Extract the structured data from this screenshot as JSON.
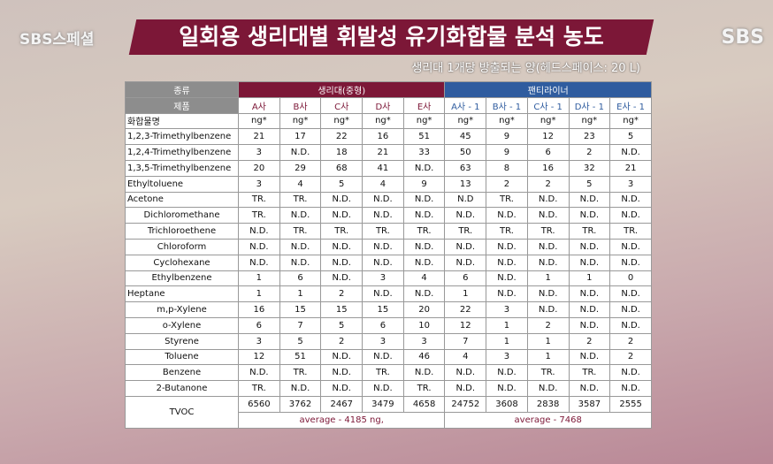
{
  "logo_left": "SBS스페셜",
  "logo_right": "SBS",
  "title": "일회용 생리대별 휘발성 유기화합물 분석 농도",
  "subtitle": "생리대 1개당 방출되는 양(헤드스페이스: 20 L)",
  "table": {
    "kind_label": "종류",
    "groups": [
      "생리대(중형)",
      "팬티라이너"
    ],
    "product_label": "제품",
    "products": [
      "A사",
      "B사",
      "C사",
      "D사",
      "E사",
      "A사 - 1",
      "B사 - 1",
      "C사 - 1",
      "D사 - 1",
      "E사 - 1"
    ],
    "compound_label": "화합물명",
    "units": [
      "ng*",
      "ng*",
      "ng*",
      "ng*",
      "ng*",
      "ng*",
      "ng*",
      "ng*",
      "ng*",
      "ng*"
    ],
    "rows": [
      {
        "name": "1,2,3-Trimethylbenzene",
        "cells": [
          "21",
          "17",
          "22",
          "16",
          "51",
          "45",
          "9",
          "12",
          "23",
          "5"
        ]
      },
      {
        "name": "1,2,4-Trimethylbenzene",
        "cells": [
          "3",
          "N.D.",
          "18",
          "21",
          "33",
          "50",
          "9",
          "6",
          "2",
          "N.D."
        ]
      },
      {
        "name": "1,3,5-Trimethylbenzene",
        "cells": [
          "20",
          "29",
          "68",
          "41",
          "N.D.",
          "63",
          "8",
          "16",
          "32",
          "21"
        ]
      },
      {
        "name": "Ethyltoluene",
        "cells": [
          "3",
          "4",
          "5",
          "4",
          "9",
          "13",
          "2",
          "2",
          "5",
          "3"
        ]
      },
      {
        "name": "Acetone",
        "cells": [
          "TR.",
          "TR.",
          "N.D.",
          "N.D.",
          "N.D.",
          "N.D",
          "TR.",
          "N.D.",
          "N.D.",
          "N.D."
        ]
      },
      {
        "name": "Dichloromethane",
        "cells": [
          "TR.",
          "N.D.",
          "N.D.",
          "N.D.",
          "N.D.",
          "N.D.",
          "N.D.",
          "N.D.",
          "N.D.",
          "N.D."
        ]
      },
      {
        "name": "Trichloroethene",
        "cells": [
          "N.D.",
          "TR.",
          "TR.",
          "TR.",
          "TR.",
          "TR.",
          "TR.",
          "TR.",
          "TR.",
          "TR."
        ]
      },
      {
        "name": "Chloroform",
        "cells": [
          "N.D.",
          "N.D.",
          "N.D.",
          "N.D.",
          "N.D.",
          "N.D.",
          "N.D.",
          "N.D.",
          "N.D.",
          "N.D."
        ]
      },
      {
        "name": "Cyclohexane",
        "cells": [
          "N.D.",
          "N.D.",
          "N.D.",
          "N.D.",
          "N.D.",
          "N.D.",
          "N.D.",
          "N.D.",
          "N.D.",
          "N.D."
        ]
      },
      {
        "name": "Ethylbenzene",
        "cells": [
          "1",
          "6",
          "N.D.",
          "3",
          "4",
          "6",
          "N.D.",
          "1",
          "1",
          "0"
        ]
      },
      {
        "name": "Heptane",
        "cells": [
          "1",
          "1",
          "2",
          "N.D.",
          "N.D.",
          "1",
          "N.D.",
          "N.D.",
          "N.D.",
          "N.D."
        ]
      },
      {
        "name": "m,p-Xylene",
        "cells": [
          "16",
          "15",
          "15",
          "15",
          "20",
          "22",
          "3",
          "N.D.",
          "N.D.",
          "N.D."
        ]
      },
      {
        "name": "o-Xylene",
        "cells": [
          "6",
          "7",
          "5",
          "6",
          "10",
          "12",
          "1",
          "2",
          "N.D.",
          "N.D."
        ]
      },
      {
        "name": "Styrene",
        "cells": [
          "3",
          "5",
          "2",
          "3",
          "3",
          "7",
          "1",
          "1",
          "2",
          "2"
        ]
      },
      {
        "name": "Toluene",
        "cells": [
          "12",
          "51",
          "N.D.",
          "N.D.",
          "46",
          "4",
          "3",
          "1",
          "N.D.",
          "2"
        ]
      },
      {
        "name": "Benzene",
        "cells": [
          "N.D.",
          "TR.",
          "N.D.",
          "TR.",
          "N.D.",
          "N.D.",
          "N.D.",
          "TR.",
          "TR.",
          "N.D."
        ]
      },
      {
        "name": "2-Butanone",
        "cells": [
          "TR.",
          "N.D.",
          "N.D.",
          "N.D.",
          "TR.",
          "N.D.",
          "N.D.",
          "N.D.",
          "N.D.",
          "N.D."
        ]
      }
    ],
    "total": {
      "name": "TVOC",
      "cells": [
        "6560",
        "3762",
        "2467",
        "3479",
        "4658",
        "24752",
        "3608",
        "2838",
        "3587",
        "2555"
      ],
      "averages": [
        "average - 4185 ng,",
        "average - 7468"
      ]
    }
  }
}
